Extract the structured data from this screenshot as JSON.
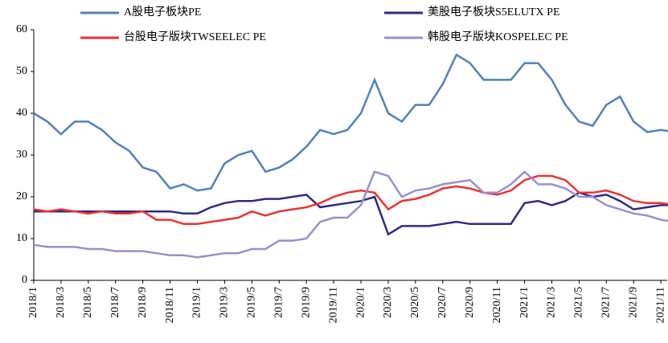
{
  "chart_data": {
    "type": "line",
    "categories": [
      "2018/1",
      null,
      "2018/3",
      null,
      "2018/5",
      null,
      "2018/7",
      null,
      "2018/9",
      null,
      "2018/11",
      null,
      "2019/1",
      null,
      "2019/3",
      null,
      "2019/5",
      null,
      "2019/7",
      null,
      "2019/9",
      null,
      "2019/11",
      null,
      "2020/1",
      null,
      "2020/3",
      null,
      "2020/5",
      null,
      "2020/7",
      null,
      "2020/9",
      null,
      "2020/11",
      null,
      "2021/1",
      null,
      "2021/3",
      null,
      "2021/5",
      null,
      "2021/7",
      null,
      "2021/9",
      null,
      "2021/11",
      null
    ],
    "series": [
      {
        "name": "A股电子板块PE",
        "color": "#4f81bd",
        "values": [
          40,
          38,
          35,
          38,
          38,
          36,
          33,
          31,
          27,
          26,
          22,
          23,
          21.5,
          22,
          28,
          30,
          31,
          26,
          27,
          29,
          32,
          36,
          35,
          36,
          40,
          48,
          40,
          38,
          42,
          42,
          47,
          54,
          52,
          48,
          48,
          48,
          52,
          52,
          48,
          42,
          38,
          37,
          42,
          44,
          38,
          35.5,
          36,
          35.5
        ]
      },
      {
        "name": "美股电子板块S5ELUTX PE",
        "color": "#2e2a84",
        "values": [
          16.5,
          16.5,
          16.5,
          16.5,
          16.5,
          16.5,
          16.5,
          16.5,
          16.5,
          16.5,
          16.5,
          16,
          16,
          17.5,
          18.5,
          19,
          19,
          19.5,
          19.5,
          20,
          20.5,
          17.5,
          18,
          18.5,
          19,
          20,
          11,
          13,
          13,
          13,
          13.5,
          14,
          13.5,
          13.5,
          13.5,
          13.5,
          18.5,
          19,
          18,
          19,
          21,
          20,
          20.5,
          19,
          17,
          17.5,
          18,
          18
        ]
      },
      {
        "name": "台股电子版块TWSEELEC PE",
        "color": "#ee3131",
        "values": [
          17,
          16.5,
          17,
          16.5,
          16,
          16.5,
          16,
          16,
          16.5,
          14.5,
          14.5,
          13.5,
          13.5,
          14,
          14.5,
          15,
          16.5,
          15.5,
          16.5,
          17,
          17.5,
          18.5,
          20,
          21,
          21.5,
          21,
          17,
          19,
          19.5,
          20.5,
          22,
          22.5,
          22,
          21,
          20.5,
          21.5,
          24,
          25,
          25,
          24,
          21,
          21,
          21.5,
          20.5,
          19,
          18.5,
          18.5,
          18
        ]
      },
      {
        "name": "韩股电子版块KOSPELEC PE",
        "color": "#9b8fcc",
        "values": [
          8.5,
          8,
          8,
          8,
          7.5,
          7.5,
          7,
          7,
          7,
          6.5,
          6,
          6,
          5.5,
          6,
          6.5,
          6.5,
          7.5,
          7.5,
          9.5,
          9.5,
          10,
          14,
          15,
          15,
          18,
          26,
          25,
          20,
          21.5,
          22,
          23,
          23.5,
          24,
          21,
          21,
          23,
          26,
          23,
          23,
          22,
          20,
          20,
          18,
          17,
          16,
          15.5,
          14.5,
          14
        ]
      }
    ],
    "ylim": [
      0,
      60
    ],
    "yticks": [
      0,
      10,
      20,
      30,
      40,
      50,
      60
    ]
  }
}
